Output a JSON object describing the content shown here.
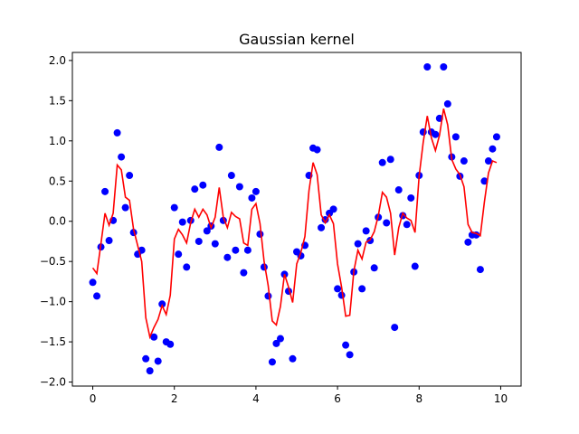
{
  "chart_data": {
    "type": "scatter",
    "title": "Gaussian kernel",
    "xlabel": "",
    "ylabel": "",
    "xlim": [
      -0.5,
      10.5
    ],
    "ylim": [
      -2.05,
      2.1
    ],
    "xticks": [
      0,
      2,
      4,
      6,
      8,
      10
    ],
    "yticks": [
      -2.0,
      -1.5,
      -1.0,
      -0.5,
      0.0,
      0.5,
      1.0,
      1.5,
      2.0
    ],
    "xtick_labels": [
      "0",
      "2",
      "4",
      "6",
      "8",
      "10"
    ],
    "ytick_labels": [
      "−2.0",
      "−1.5",
      "−1.0",
      "−0.5",
      "0.0",
      "0.5",
      "1.0",
      "1.5",
      "2.0"
    ],
    "grid": false,
    "series": [
      {
        "kind": "scatter",
        "color": "#0000ff",
        "points": [
          [
            0.0,
            -0.76
          ],
          [
            0.1,
            -0.93
          ],
          [
            0.2,
            -0.32
          ],
          [
            0.3,
            0.37
          ],
          [
            0.4,
            -0.24
          ],
          [
            0.5,
            0.01
          ],
          [
            0.6,
            1.1
          ],
          [
            0.7,
            0.8
          ],
          [
            0.8,
            0.17
          ],
          [
            0.9,
            0.57
          ],
          [
            1.0,
            -0.14
          ],
          [
            1.1,
            -0.41
          ],
          [
            1.2,
            -0.36
          ],
          [
            1.3,
            -1.71
          ],
          [
            1.4,
            -1.86
          ],
          [
            1.5,
            -1.44
          ],
          [
            1.6,
            -1.74
          ],
          [
            1.7,
            -1.03
          ],
          [
            1.8,
            -1.5
          ],
          [
            1.9,
            -1.53
          ],
          [
            2.0,
            0.17
          ],
          [
            2.1,
            -0.41
          ],
          [
            2.2,
            -0.01
          ],
          [
            2.3,
            -0.57
          ],
          [
            2.4,
            0.01
          ],
          [
            2.5,
            0.4
          ],
          [
            2.6,
            -0.25
          ],
          [
            2.7,
            0.45
          ],
          [
            2.8,
            -0.12
          ],
          [
            2.9,
            -0.06
          ],
          [
            3.0,
            -0.28
          ],
          [
            3.1,
            0.92
          ],
          [
            3.2,
            0.01
          ],
          [
            3.3,
            -0.45
          ],
          [
            3.4,
            0.57
          ],
          [
            3.5,
            -0.36
          ],
          [
            3.6,
            0.43
          ],
          [
            3.7,
            -0.64
          ],
          [
            3.8,
            -0.36
          ],
          [
            3.9,
            0.29
          ],
          [
            4.0,
            0.37
          ],
          [
            4.1,
            -0.16
          ],
          [
            4.2,
            -0.57
          ],
          [
            4.3,
            -0.93
          ],
          [
            4.4,
            -1.75
          ],
          [
            4.5,
            -1.52
          ],
          [
            4.6,
            -1.46
          ],
          [
            4.7,
            -0.66
          ],
          [
            4.8,
            -0.87
          ],
          [
            4.9,
            -1.71
          ],
          [
            5.0,
            -0.38
          ],
          [
            5.1,
            -0.43
          ],
          [
            5.2,
            -0.3
          ],
          [
            5.3,
            0.57
          ],
          [
            5.4,
            0.91
          ],
          [
            5.5,
            0.89
          ],
          [
            5.6,
            -0.08
          ],
          [
            5.7,
            0.02
          ],
          [
            5.8,
            0.1
          ],
          [
            5.9,
            0.15
          ],
          [
            6.0,
            -0.84
          ],
          [
            6.1,
            -0.92
          ],
          [
            6.2,
            -1.54
          ],
          [
            6.3,
            -1.66
          ],
          [
            6.4,
            -0.63
          ],
          [
            6.5,
            -0.28
          ],
          [
            6.6,
            -0.84
          ],
          [
            6.7,
            -0.12
          ],
          [
            6.8,
            -0.24
          ],
          [
            6.9,
            -0.58
          ],
          [
            7.0,
            0.05
          ],
          [
            7.1,
            0.73
          ],
          [
            7.2,
            -0.02
          ],
          [
            7.3,
            0.77
          ],
          [
            7.4,
            -1.32
          ],
          [
            7.5,
            0.39
          ],
          [
            7.6,
            0.07
          ],
          [
            7.7,
            -0.04
          ],
          [
            7.8,
            0.29
          ],
          [
            7.9,
            -0.56
          ],
          [
            8.0,
            0.57
          ],
          [
            8.1,
            1.11
          ],
          [
            8.2,
            1.92
          ],
          [
            8.3,
            1.11
          ],
          [
            8.4,
            1.08
          ],
          [
            8.5,
            1.28
          ],
          [
            8.6,
            1.92
          ],
          [
            8.7,
            1.46
          ],
          [
            8.8,
            0.8
          ],
          [
            8.9,
            1.05
          ],
          [
            9.0,
            0.56
          ],
          [
            9.1,
            0.75
          ],
          [
            9.2,
            -0.26
          ],
          [
            9.3,
            -0.17
          ],
          [
            9.4,
            -0.17
          ],
          [
            9.5,
            -0.6
          ],
          [
            9.6,
            0.5
          ],
          [
            9.7,
            0.75
          ],
          [
            9.8,
            0.9
          ],
          [
            9.9,
            1.05
          ]
        ]
      },
      {
        "kind": "line",
        "color": "#ff0000",
        "points": [
          [
            0.0,
            -0.58
          ],
          [
            0.1,
            -0.65
          ],
          [
            0.2,
            -0.28
          ],
          [
            0.3,
            0.1
          ],
          [
            0.4,
            -0.05
          ],
          [
            0.5,
            0.1
          ],
          [
            0.6,
            0.7
          ],
          [
            0.7,
            0.64
          ],
          [
            0.8,
            0.3
          ],
          [
            0.9,
            0.26
          ],
          [
            1.0,
            -0.1
          ],
          [
            1.1,
            -0.3
          ],
          [
            1.2,
            -0.5
          ],
          [
            1.3,
            -1.2
          ],
          [
            1.4,
            -1.44
          ],
          [
            1.5,
            -1.32
          ],
          [
            1.6,
            -1.22
          ],
          [
            1.7,
            -1.05
          ],
          [
            1.8,
            -1.16
          ],
          [
            1.9,
            -0.92
          ],
          [
            2.0,
            -0.22
          ],
          [
            2.1,
            -0.1
          ],
          [
            2.2,
            -0.17
          ],
          [
            2.3,
            -0.27
          ],
          [
            2.4,
            -0.02
          ],
          [
            2.5,
            0.15
          ],
          [
            2.6,
            0.05
          ],
          [
            2.7,
            0.15
          ],
          [
            2.8,
            0.08
          ],
          [
            2.9,
            -0.08
          ],
          [
            3.0,
            0.05
          ],
          [
            3.1,
            0.42
          ],
          [
            3.2,
            0.05
          ],
          [
            3.3,
            -0.08
          ],
          [
            3.4,
            0.11
          ],
          [
            3.5,
            0.06
          ],
          [
            3.6,
            0.03
          ],
          [
            3.7,
            -0.27
          ],
          [
            3.8,
            -0.3
          ],
          [
            3.9,
            0.15
          ],
          [
            4.0,
            0.22
          ],
          [
            4.1,
            -0.03
          ],
          [
            4.2,
            -0.5
          ],
          [
            4.3,
            -0.8
          ],
          [
            4.4,
            -1.24
          ],
          [
            4.5,
            -1.29
          ],
          [
            4.6,
            -1.06
          ],
          [
            4.7,
            -0.66
          ],
          [
            4.8,
            -0.82
          ],
          [
            4.9,
            -1.01
          ],
          [
            5.0,
            -0.53
          ],
          [
            5.1,
            -0.39
          ],
          [
            5.2,
            -0.19
          ],
          [
            5.3,
            0.38
          ],
          [
            5.4,
            0.73
          ],
          [
            5.5,
            0.58
          ],
          [
            5.6,
            0.08
          ],
          [
            5.7,
            -0.02
          ],
          [
            5.8,
            0.08
          ],
          [
            5.9,
            -0.03
          ],
          [
            6.0,
            -0.53
          ],
          [
            6.1,
            -0.82
          ],
          [
            6.2,
            -1.18
          ],
          [
            6.3,
            -1.17
          ],
          [
            6.4,
            -0.62
          ],
          [
            6.5,
            -0.36
          ],
          [
            6.6,
            -0.47
          ],
          [
            6.7,
            -0.26
          ],
          [
            6.8,
            -0.23
          ],
          [
            6.9,
            -0.13
          ],
          [
            7.0,
            0.07
          ],
          [
            7.1,
            0.36
          ],
          [
            7.2,
            0.3
          ],
          [
            7.3,
            0.1
          ],
          [
            7.4,
            -0.42
          ],
          [
            7.5,
            -0.08
          ],
          [
            7.6,
            0.1
          ],
          [
            7.7,
            0.04
          ],
          [
            7.8,
            0.01
          ],
          [
            7.9,
            -0.14
          ],
          [
            8.0,
            0.56
          ],
          [
            8.1,
            0.98
          ],
          [
            8.2,
            1.31
          ],
          [
            8.3,
            1.04
          ],
          [
            8.4,
            0.88
          ],
          [
            8.5,
            1.07
          ],
          [
            8.6,
            1.4
          ],
          [
            8.7,
            1.2
          ],
          [
            8.8,
            0.77
          ],
          [
            8.9,
            0.65
          ],
          [
            9.0,
            0.58
          ],
          [
            9.1,
            0.43
          ],
          [
            9.2,
            -0.04
          ],
          [
            9.3,
            -0.14
          ],
          [
            9.4,
            -0.15
          ],
          [
            9.5,
            -0.18
          ],
          [
            9.6,
            0.24
          ],
          [
            9.7,
            0.6
          ],
          [
            9.8,
            0.75
          ],
          [
            9.9,
            0.73
          ]
        ]
      }
    ]
  }
}
